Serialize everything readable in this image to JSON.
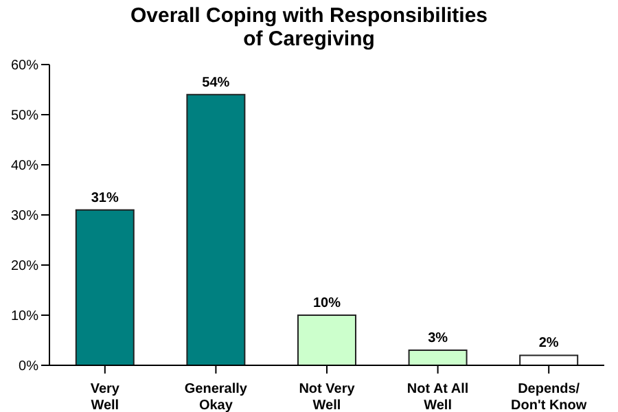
{
  "chart_data": {
    "type": "bar",
    "title": "Overall Coping with Responsibilities\nof Caregiving",
    "categories": [
      "Very\nWell",
      "Generally\nOkay",
      "Not Very\nWell",
      "Not At All\nWell",
      "Depends/\nDon't Know"
    ],
    "values": [
      31,
      54,
      10,
      3,
      2
    ],
    "colors": [
      "#008080",
      "#008080",
      "#ccffcc",
      "#ccffcc",
      "#ffffff"
    ],
    "value_labels": [
      "31%",
      "54%",
      "10%",
      "3%",
      "2%"
    ],
    "ylim": [
      0,
      60
    ],
    "yticks": [
      {
        "value": 0,
        "label": "0%"
      },
      {
        "value": 10,
        "label": "10%"
      },
      {
        "value": 20,
        "label": "20%"
      },
      {
        "value": 30,
        "label": "30%"
      },
      {
        "value": 40,
        "label": "40%"
      },
      {
        "value": 50,
        "label": "50%"
      },
      {
        "value": 60,
        "label": "60%"
      }
    ],
    "grid": false,
    "legend": false
  }
}
